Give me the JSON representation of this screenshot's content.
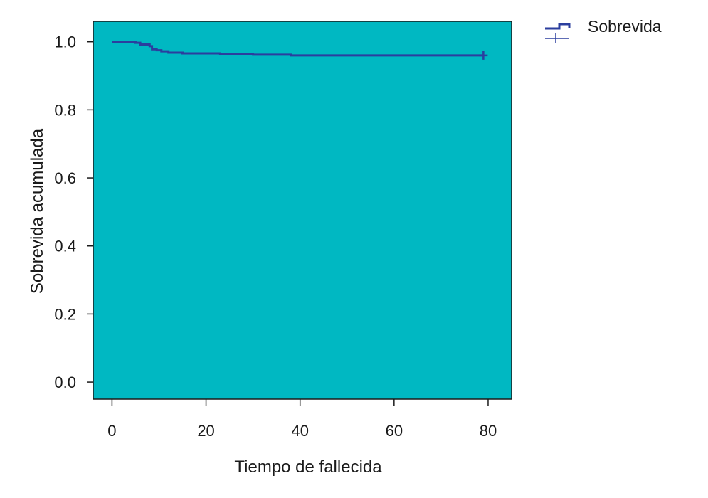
{
  "chart_data": {
    "type": "line",
    "title": "",
    "xlabel": "Tiempo de fallecida",
    "ylabel": "Sobrevida acumulada",
    "xlim": [
      -4,
      85
    ],
    "ylim": [
      -0.05,
      1.06
    ],
    "x_ticks": [
      0,
      20,
      40,
      60,
      80
    ],
    "x_tick_labels": [
      "0",
      "20",
      "40",
      "60",
      "80"
    ],
    "y_ticks": [
      0.0,
      0.2,
      0.4,
      0.6,
      0.8,
      1.0
    ],
    "y_tick_labels": [
      "0.0",
      "0.2",
      "0.4",
      "0.6",
      "0.8",
      "1.0"
    ],
    "grid": false,
    "legend_position": "outside-top-right",
    "plot_background": "#00b8c2",
    "series": [
      {
        "name": "Sobrevida",
        "color": "#2b3e9e",
        "step": true,
        "x": [
          0,
          5,
          6,
          8,
          8.5,
          9.5,
          10.5,
          12,
          15,
          23,
          30,
          38,
          79
        ],
        "y": [
          1.0,
          0.997,
          0.992,
          0.987,
          0.978,
          0.975,
          0.972,
          0.968,
          0.966,
          0.964,
          0.962,
          0.96,
          0.96
        ],
        "censor_x": [
          79
        ],
        "censor_y": [
          0.96
        ]
      }
    ],
    "legend": {
      "entry": "Sobrevida",
      "censored_symbol": "+"
    }
  }
}
